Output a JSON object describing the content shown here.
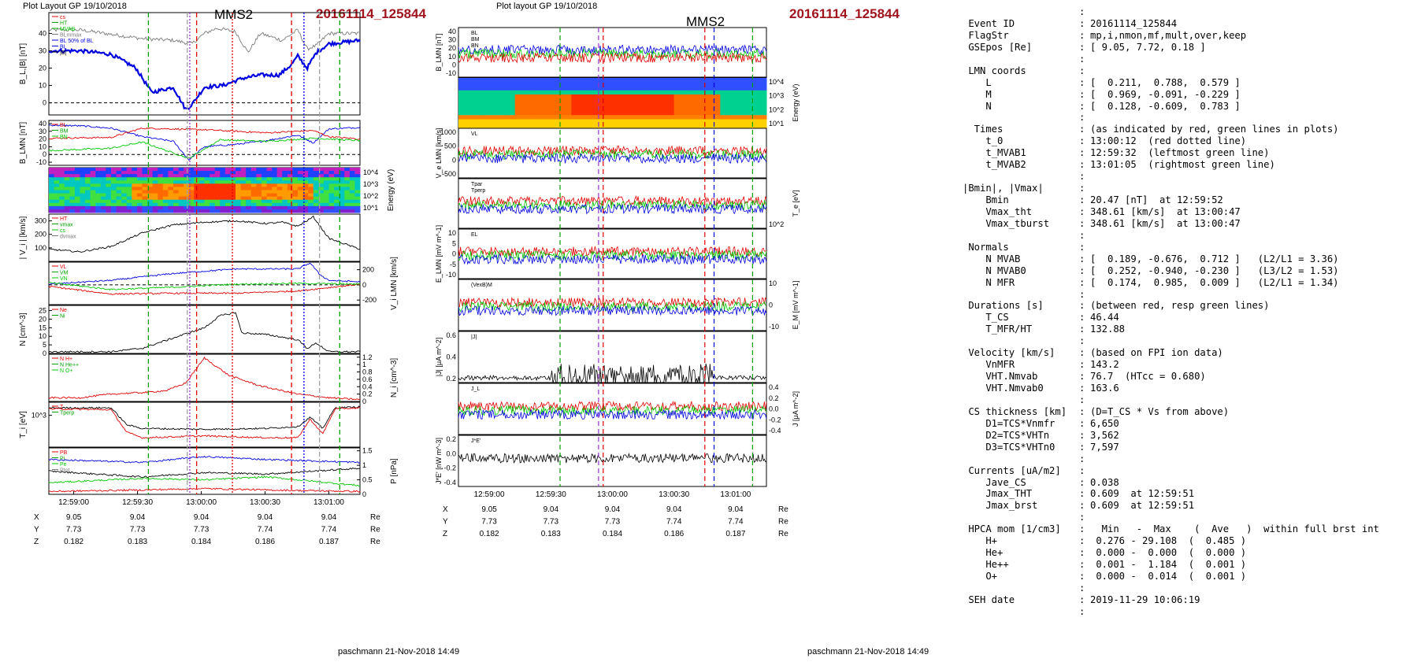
{
  "left_figure": {
    "plot_layout": "Plot Layout GP 19/10/2018",
    "spacecraft": "MMS2",
    "event_label": "20161114_125844",
    "footer": "paschmann 21-Nov-2018 14:49"
  },
  "middle_figure": {
    "plot_layout": "Plot layout GP 19/10/2018",
    "spacecraft": "MMS2",
    "event_label": "20161114_125844",
    "footer": "paschmann 21-Nov-2018 14:49"
  },
  "chart_data": [
    {
      "type": "line",
      "panel": "B_L, |B|",
      "ylabel": "B_L,|B| [nT]",
      "yticks": [
        0,
        10,
        20,
        30,
        40
      ],
      "ylim": [
        -7,
        52
      ],
      "legend": [
        "cs",
        "HT",
        "MVAB",
        "BLmmax",
        "BL 50% of BL",
        "BL",
        "|B|"
      ],
      "series": [
        {
          "name": "|B|",
          "color": "#7a7a7a",
          "x": [
            0,
            0.1,
            0.18,
            0.3,
            0.4,
            0.46,
            0.5,
            0.54,
            0.6,
            0.64,
            0.68,
            0.75,
            0.8,
            0.83,
            0.86,
            0.9,
            1.0
          ],
          "y": [
            42,
            42,
            40,
            37,
            36,
            34,
            40,
            43,
            41,
            29,
            40,
            36,
            42,
            31,
            33,
            40,
            40
          ]
        },
        {
          "name": "BL",
          "color": "#0000e0",
          "x": [
            0,
            0.1,
            0.2,
            0.28,
            0.33,
            0.4,
            0.44,
            0.46,
            0.5,
            0.56,
            0.62,
            0.68,
            0.74,
            0.78,
            0.8,
            0.83,
            0.86,
            0.9,
            1.0
          ],
          "y": [
            30,
            30,
            28,
            20,
            6,
            9,
            -4,
            -1,
            9,
            10,
            14,
            16,
            16,
            22,
            27,
            20,
            29,
            34,
            36
          ]
        }
      ]
    },
    {
      "type": "line",
      "panel": "B_LMN",
      "ylabel": "B_LMN [nT]",
      "yticks": [
        -10,
        0,
        10,
        20,
        30,
        40
      ],
      "ylim": [
        -14,
        44
      ],
      "legend": [
        "BL",
        "BM",
        "BN"
      ],
      "series": [
        {
          "name": "BL",
          "color": "#0000e0",
          "x": [
            0,
            0.1,
            0.2,
            0.3,
            0.4,
            0.45,
            0.5,
            0.6,
            0.7,
            0.8,
            0.85,
            0.9,
            1.0
          ],
          "y": [
            38,
            37,
            34,
            23,
            17,
            -7,
            10,
            13,
            18,
            25,
            15,
            33,
            35
          ]
        },
        {
          "name": "BM",
          "color": "#e00000",
          "x": [
            0,
            0.2,
            0.3,
            0.5,
            0.7,
            0.85,
            0.9,
            1.0
          ],
          "y": [
            21,
            22,
            34,
            32,
            28,
            31,
            23,
            20
          ]
        },
        {
          "name": "BN",
          "color": "#00c800",
          "x": [
            0,
            0.2,
            0.3,
            0.45,
            0.55,
            0.7,
            0.85,
            1.0
          ],
          "y": [
            5,
            8,
            16,
            -5,
            19,
            17,
            21,
            18
          ]
        }
      ]
    },
    {
      "type": "heatmap",
      "panel": "ion energy spectrogram",
      "ylabel": "Energy (eV)",
      "yticks": [
        "10^1",
        "10^2",
        "10^3",
        "10^4"
      ]
    },
    {
      "type": "line",
      "panel": "|Vi|",
      "ylabel": "| V_i | [km/s]",
      "yticks": [
        100,
        200,
        300
      ],
      "ylim": [
        0,
        350
      ],
      "legend": [
        "HT",
        "vmax",
        "cs",
        "dvmax"
      ],
      "series": [
        {
          "name": "|Vi|",
          "color": "#000000",
          "x": [
            0,
            0.1,
            0.2,
            0.3,
            0.4,
            0.5,
            0.6,
            0.7,
            0.75,
            0.8,
            0.85,
            0.9,
            1.0
          ],
          "y": [
            90,
            70,
            110,
            210,
            270,
            290,
            300,
            280,
            290,
            260,
            330,
            170,
            90
          ]
        }
      ]
    },
    {
      "type": "line",
      "panel": "Vi LMN",
      "ylabel": "V_i LMN [km/s]",
      "yticks": [
        -200,
        0,
        200
      ],
      "ylim": [
        -260,
        300
      ],
      "legend": [
        "VL",
        "VM",
        "VN"
      ],
      "series": [
        {
          "name": "VL",
          "color": "#0000e0",
          "x": [
            0,
            0.2,
            0.4,
            0.6,
            0.8,
            0.84,
            0.87,
            0.9,
            1.0
          ],
          "y": [
            10,
            60,
            150,
            210,
            210,
            290,
            140,
            60,
            40
          ]
        },
        {
          "name": "VM",
          "color": "#e00000",
          "x": [
            0,
            0.2,
            0.4,
            0.6,
            0.8,
            1.0
          ],
          "y": [
            -20,
            -120,
            -110,
            -110,
            -80,
            10
          ]
        },
        {
          "name": "VN",
          "color": "#00c800",
          "x": [
            0,
            0.2,
            0.4,
            0.6,
            0.8,
            1.0
          ],
          "y": [
            30,
            -60,
            -30,
            10,
            20,
            10
          ]
        }
      ]
    },
    {
      "type": "line",
      "panel": "density",
      "ylabel": "N [cm^-3]",
      "yticks": [
        0,
        5,
        10,
        15,
        20,
        25
      ],
      "ylim": [
        0,
        28
      ],
      "legend": [
        "Ne",
        "Ni"
      ],
      "series": [
        {
          "name": "Ni",
          "color": "#000000",
          "x": [
            0,
            0.2,
            0.3,
            0.4,
            0.45,
            0.5,
            0.55,
            0.58,
            0.6,
            0.62,
            0.7,
            0.8,
            0.83,
            0.86,
            0.9,
            1.0
          ],
          "y": [
            1,
            1,
            3,
            9,
            12,
            15,
            22,
            23,
            24,
            12,
            11,
            8,
            3,
            6,
            1,
            1
          ]
        }
      ]
    },
    {
      "type": "line",
      "panel": "HPCA densities",
      "ylabel": "N_i [cm^-3]",
      "yticks": [
        0.0,
        0.2,
        0.4,
        0.6,
        0.8,
        1.0,
        1.2
      ],
      "ylim": [
        0,
        1.28
      ],
      "legend": [
        "N H+",
        "N He++",
        "N O+"
      ],
      "series": [
        {
          "name": "N He++",
          "color": "#e00000",
          "x": [
            0.1,
            0.2,
            0.32,
            0.38,
            0.44,
            0.5,
            0.58,
            0.68,
            0.8,
            0.9,
            1.0
          ],
          "y": [
            0.1,
            0.2,
            0.25,
            0.3,
            0.5,
            1.18,
            0.7,
            0.42,
            0.2,
            0.1,
            0.05
          ]
        }
      ]
    },
    {
      "type": "line",
      "panel": "ion temperature",
      "ylabel": "T_i [eV]",
      "yticks": [
        "10^3"
      ],
      "legend": [
        "T",
        "Tperp"
      ],
      "series": [
        {
          "name": "Tpar",
          "color": "#000000",
          "x": [
            0,
            0.2,
            0.25,
            0.3,
            0.5,
            0.7,
            0.8,
            0.84,
            0.88,
            0.92,
            1.0
          ],
          "y": [
            3.1,
            3.1,
            2.2,
            2.0,
            1.95,
            2.0,
            2.1,
            2.6,
            2.0,
            3.1,
            3.15
          ]
        },
        {
          "name": "Tperp",
          "color": "#e00000",
          "x": [
            0,
            0.2,
            0.25,
            0.3,
            0.5,
            0.7,
            0.8,
            0.84,
            0.88,
            0.92,
            1.0
          ],
          "y": [
            3.05,
            3.0,
            1.8,
            1.5,
            1.6,
            1.5,
            1.5,
            2.5,
            1.7,
            3.05,
            3.1
          ]
        }
      ]
    },
    {
      "type": "line",
      "panel": "pressures",
      "ylabel": "P [nPa]",
      "yticks": [
        0.0,
        0.5,
        1.0,
        1.5
      ],
      "ylim": [
        0,
        1.6
      ],
      "legend": [
        "PB",
        "Pi",
        "Pe",
        "Ptot"
      ],
      "series": [
        {
          "name": "Ptot",
          "color": "#000000",
          "x": [
            0,
            0.3,
            0.5,
            0.7,
            1.0
          ],
          "y": [
            0.8,
            0.6,
            0.75,
            0.7,
            0.9
          ]
        },
        {
          "name": "PB",
          "color": "#0000e0",
          "x": [
            0,
            0.3,
            0.5,
            0.7,
            1.0
          ],
          "y": [
            1.2,
            1.1,
            1.3,
            1.2,
            1.1
          ]
        },
        {
          "name": "Pi",
          "color": "#00c800",
          "x": [
            0,
            0.3,
            0.5,
            0.7,
            1.0
          ],
          "y": [
            0.4,
            0.55,
            0.5,
            0.6,
            0.3
          ]
        },
        {
          "name": "Pe",
          "color": "#e00000",
          "x": [
            0,
            0.3,
            0.5,
            0.7,
            1.0
          ],
          "y": [
            0.1,
            0.15,
            0.2,
            0.15,
            0.1
          ]
        }
      ]
    },
    {
      "type": "table",
      "panel": "time axis and position",
      "x_ticks": [
        "12:59:00",
        "12:59:30",
        "13:00:00",
        "13:00:30",
        "13:01:00"
      ],
      "rows": [
        {
          "label": "X",
          "values": [
            "9.05",
            "9.04",
            "9.04",
            "9.04",
            "9.04"
          ],
          "unit": "Re"
        },
        {
          "label": "Y",
          "values": [
            "7.73",
            "7.73",
            "7.73",
            "7.74",
            "7.74"
          ],
          "unit": "Re"
        },
        {
          "label": "Z",
          "values": [
            "0.182",
            "0.183",
            "0.184",
            "0.186",
            "0.187"
          ],
          "unit": "Re"
        }
      ]
    }
  ],
  "middle_chart_data": [
    {
      "ylabel": "B_LMN [nT]",
      "yticks": [
        "-10",
        "0",
        "10",
        "20",
        "30",
        "40"
      ],
      "legend": [
        "BL",
        "BM",
        "BN"
      ]
    },
    {
      "ylabel": "Energy (eV)",
      "yticks": [
        "10^1",
        "10^2",
        "10^3",
        "10^4"
      ]
    },
    {
      "ylabel": "V_e LMN [km/s]",
      "yticks": [
        "-500",
        "0",
        "500",
        "1000"
      ],
      "legend": [
        "VL"
      ]
    },
    {
      "ylabel": "T_e [eV]",
      "yticks": [
        "10^2"
      ],
      "legend": [
        "Tpar",
        "Tperp"
      ]
    },
    {
      "ylabel": "E_LMN [mV m^-1]",
      "yticks": [
        "-10",
        "-5",
        "0",
        "5",
        "10"
      ],
      "legend": [
        "EL"
      ]
    },
    {
      "ylabel": "E_M [mV m^-1]",
      "yticks": [
        "-10",
        "0",
        "10"
      ],
      "legend": [
        "(VexB)M"
      ]
    },
    {
      "ylabel": "|J| [μA m^-2]",
      "yticks": [
        "0.2",
        "0.4",
        "0.6"
      ],
      "legend": [
        "|J|"
      ]
    },
    {
      "ylabel": "J [μA m^-2]",
      "yticks": [
        "-0.4",
        "-0.2",
        "0.0",
        "0.2",
        "0.4"
      ],
      "legend": [
        "J_L"
      ]
    },
    {
      "ylabel": "J*E' [nW m^-3]",
      "yticks": [
        "-0.4",
        "-0.2",
        "0.0",
        "0.2"
      ],
      "legend": [
        "J*E'"
      ]
    }
  ],
  "text_table": [
    {
      "key": "",
      "sep": ":",
      "value": ""
    },
    {
      "key": " Event ID",
      "sep": ":",
      "value": "20161114_125844"
    },
    {
      "key": " FlagStr",
      "sep": ":",
      "value": "mp,i,nmon,mf,mult,over,keep"
    },
    {
      "key": " GSEpos [Re]",
      "sep": ":",
      "value": "[ 9.05, 7.72, 0.18 ]"
    },
    {
      "key": "",
      "sep": ":",
      "value": ""
    },
    {
      "key": " LMN coords",
      "sep": ":",
      "value": ""
    },
    {
      "key": "    L",
      "sep": ":",
      "value": "[  0.211,  0.788,  0.579 ]"
    },
    {
      "key": "    M",
      "sep": ":",
      "value": "[  0.969, -0.091, -0.229 ]"
    },
    {
      "key": "    N",
      "sep": ":",
      "value": "[  0.128, -0.609,  0.783 ]"
    },
    {
      "key": "",
      "sep": ":",
      "value": ""
    },
    {
      "key": "  Times",
      "sep": ":",
      "value": "(as indicated by red, green lines in plots)"
    },
    {
      "key": "    t_0",
      "sep": ":",
      "value": "13:00:12  (red dotted line)"
    },
    {
      "key": "    t_MVAB1",
      "sep": ":",
      "value": "12:59:32  (leftmost green line)"
    },
    {
      "key": "    t_MVAB2",
      "sep": ":",
      "value": "13:01:05  (rightmost green line)"
    },
    {
      "key": "",
      "sep": ":",
      "value": ""
    },
    {
      "key": "|Bmin|, |Vmax|",
      "sep": ":",
      "value": ""
    },
    {
      "key": "    Bmin",
      "sep": ":",
      "value": "20.47 [nT]  at 12:59:52"
    },
    {
      "key": "    Vmax_tht",
      "sep": ":",
      "value": "348.61 [km/s]  at 13:00:47"
    },
    {
      "key": "    Vmax_tburst",
      "sep": ":",
      "value": "348.61 [km/s]  at 13:00:47"
    },
    {
      "key": "",
      "sep": ":",
      "value": ""
    },
    {
      "key": " Normals",
      "sep": ":",
      "value": ""
    },
    {
      "key": "    N MVAB",
      "sep": ":",
      "value": "[  0.189, -0.676,  0.712 ]   (L2/L1 = 3.36)"
    },
    {
      "key": "    N MVAB0",
      "sep": ":",
      "value": "[  0.252, -0.940, -0.230 ]   (L3/L2 = 1.53)"
    },
    {
      "key": "    N MFR",
      "sep": ":",
      "value": "[  0.174,  0.985,  0.009 ]   (L2/L1 = 1.34)"
    },
    {
      "key": "",
      "sep": ":",
      "value": ""
    },
    {
      "key": " Durations [s]",
      "sep": ":",
      "value": "(between red, resp green lines)"
    },
    {
      "key": "    T_CS",
      "sep": ":",
      "value": "46.44"
    },
    {
      "key": "    T_MFR/HT",
      "sep": ":",
      "value": "132.88"
    },
    {
      "key": "",
      "sep": ":",
      "value": ""
    },
    {
      "key": " Velocity [km/s]",
      "sep": ":",
      "value": "(based on FPI ion data)"
    },
    {
      "key": "    VnMFR",
      "sep": ":",
      "value": "143.2"
    },
    {
      "key": "    VHT.Nmvab",
      "sep": ":",
      "value": "76.7  (HTcc = 0.680)"
    },
    {
      "key": "    VHT.Nmvab0",
      "sep": ":",
      "value": "163.6"
    },
    {
      "key": "",
      "sep": ":",
      "value": ""
    },
    {
      "key": " CS thickness [km]",
      "sep": ":",
      "value": "(D=T_CS * Vs from above)"
    },
    {
      "key": "    D1=TCS*Vnmfr",
      "sep": ":",
      "value": "6,650"
    },
    {
      "key": "    D2=TCS*VHTn",
      "sep": ":",
      "value": "3,562"
    },
    {
      "key": "    D3=TCS*VHTn0",
      "sep": ":",
      "value": "7,597"
    },
    {
      "key": "",
      "sep": ":",
      "value": ""
    },
    {
      "key": " Currents [uA/m2]",
      "sep": ":",
      "value": ""
    },
    {
      "key": "    Jave_CS",
      "sep": ":",
      "value": "0.038"
    },
    {
      "key": "    Jmax_THT",
      "sep": ":",
      "value": "0.609  at 12:59:51"
    },
    {
      "key": "    Jmax_brst",
      "sep": ":",
      "value": "0.609  at 12:59:51"
    },
    {
      "key": "",
      "sep": ":",
      "value": ""
    },
    {
      "key": " HPCA mom [1/cm3]",
      "sep": ":",
      "value": "  Min   -  Max    (  Ave   )  within full brst int"
    },
    {
      "key": "    H+",
      "sep": ":",
      "value": " 0.276 - 29.108  (  0.485 )"
    },
    {
      "key": "    He+",
      "sep": ":",
      "value": " 0.000 -  0.000  (  0.000 )"
    },
    {
      "key": "    He++",
      "sep": ":",
      "value": " 0.001 -  1.184  (  0.001 )"
    },
    {
      "key": "    O+",
      "sep": ":",
      "value": " 0.000 -  0.014  (  0.001 )"
    },
    {
      "key": "",
      "sep": ":",
      "value": ""
    },
    {
      "key": " SEH date",
      "sep": ":",
      "value": "2019-11-29 10:06:19"
    },
    {
      "key": "",
      "sep": ":",
      "value": ""
    }
  ]
}
